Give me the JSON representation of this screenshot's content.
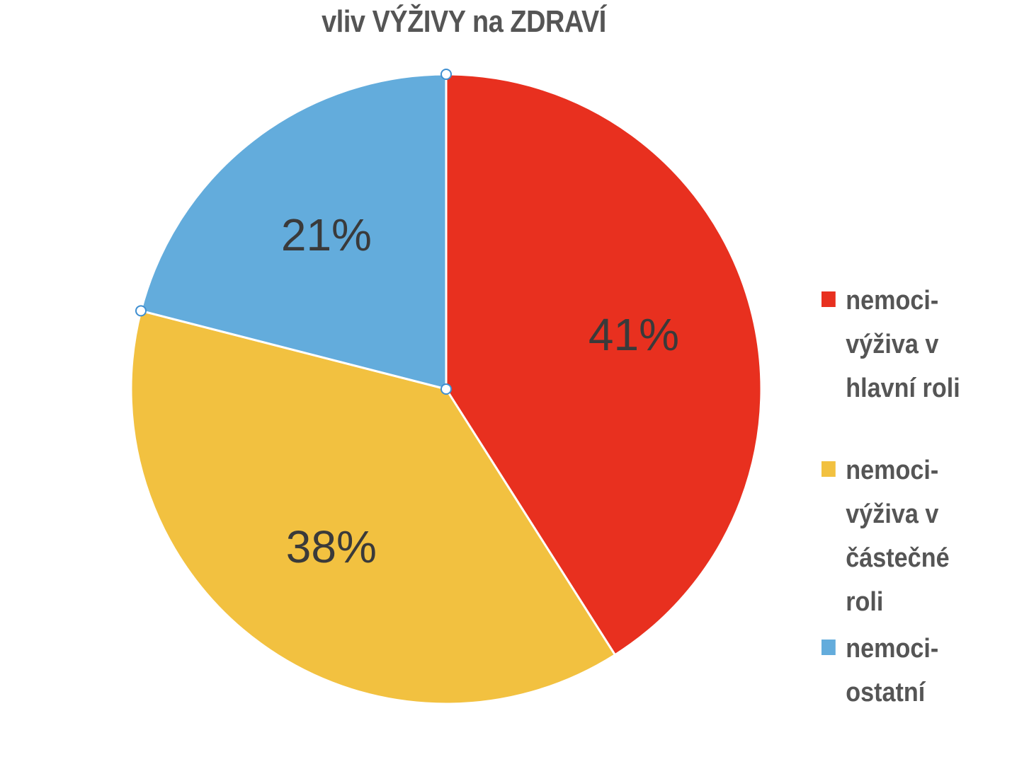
{
  "chart_data": {
    "type": "pie",
    "title": "vliv VÝŽIVY na ZDRAVÍ",
    "slices": [
      {
        "label": "nemoci-výživa v hlavní roli",
        "value": 41,
        "display": "41%",
        "color": "#e8301f"
      },
      {
        "label": "nemoci-výživa v částečné roli",
        "value": 38,
        "display": "38%",
        "color": "#f2c140"
      },
      {
        "label": "nemoci-ostatní",
        "value": 21,
        "display": "21%",
        "color": "#63acdc"
      }
    ],
    "legend_position": "right"
  }
}
